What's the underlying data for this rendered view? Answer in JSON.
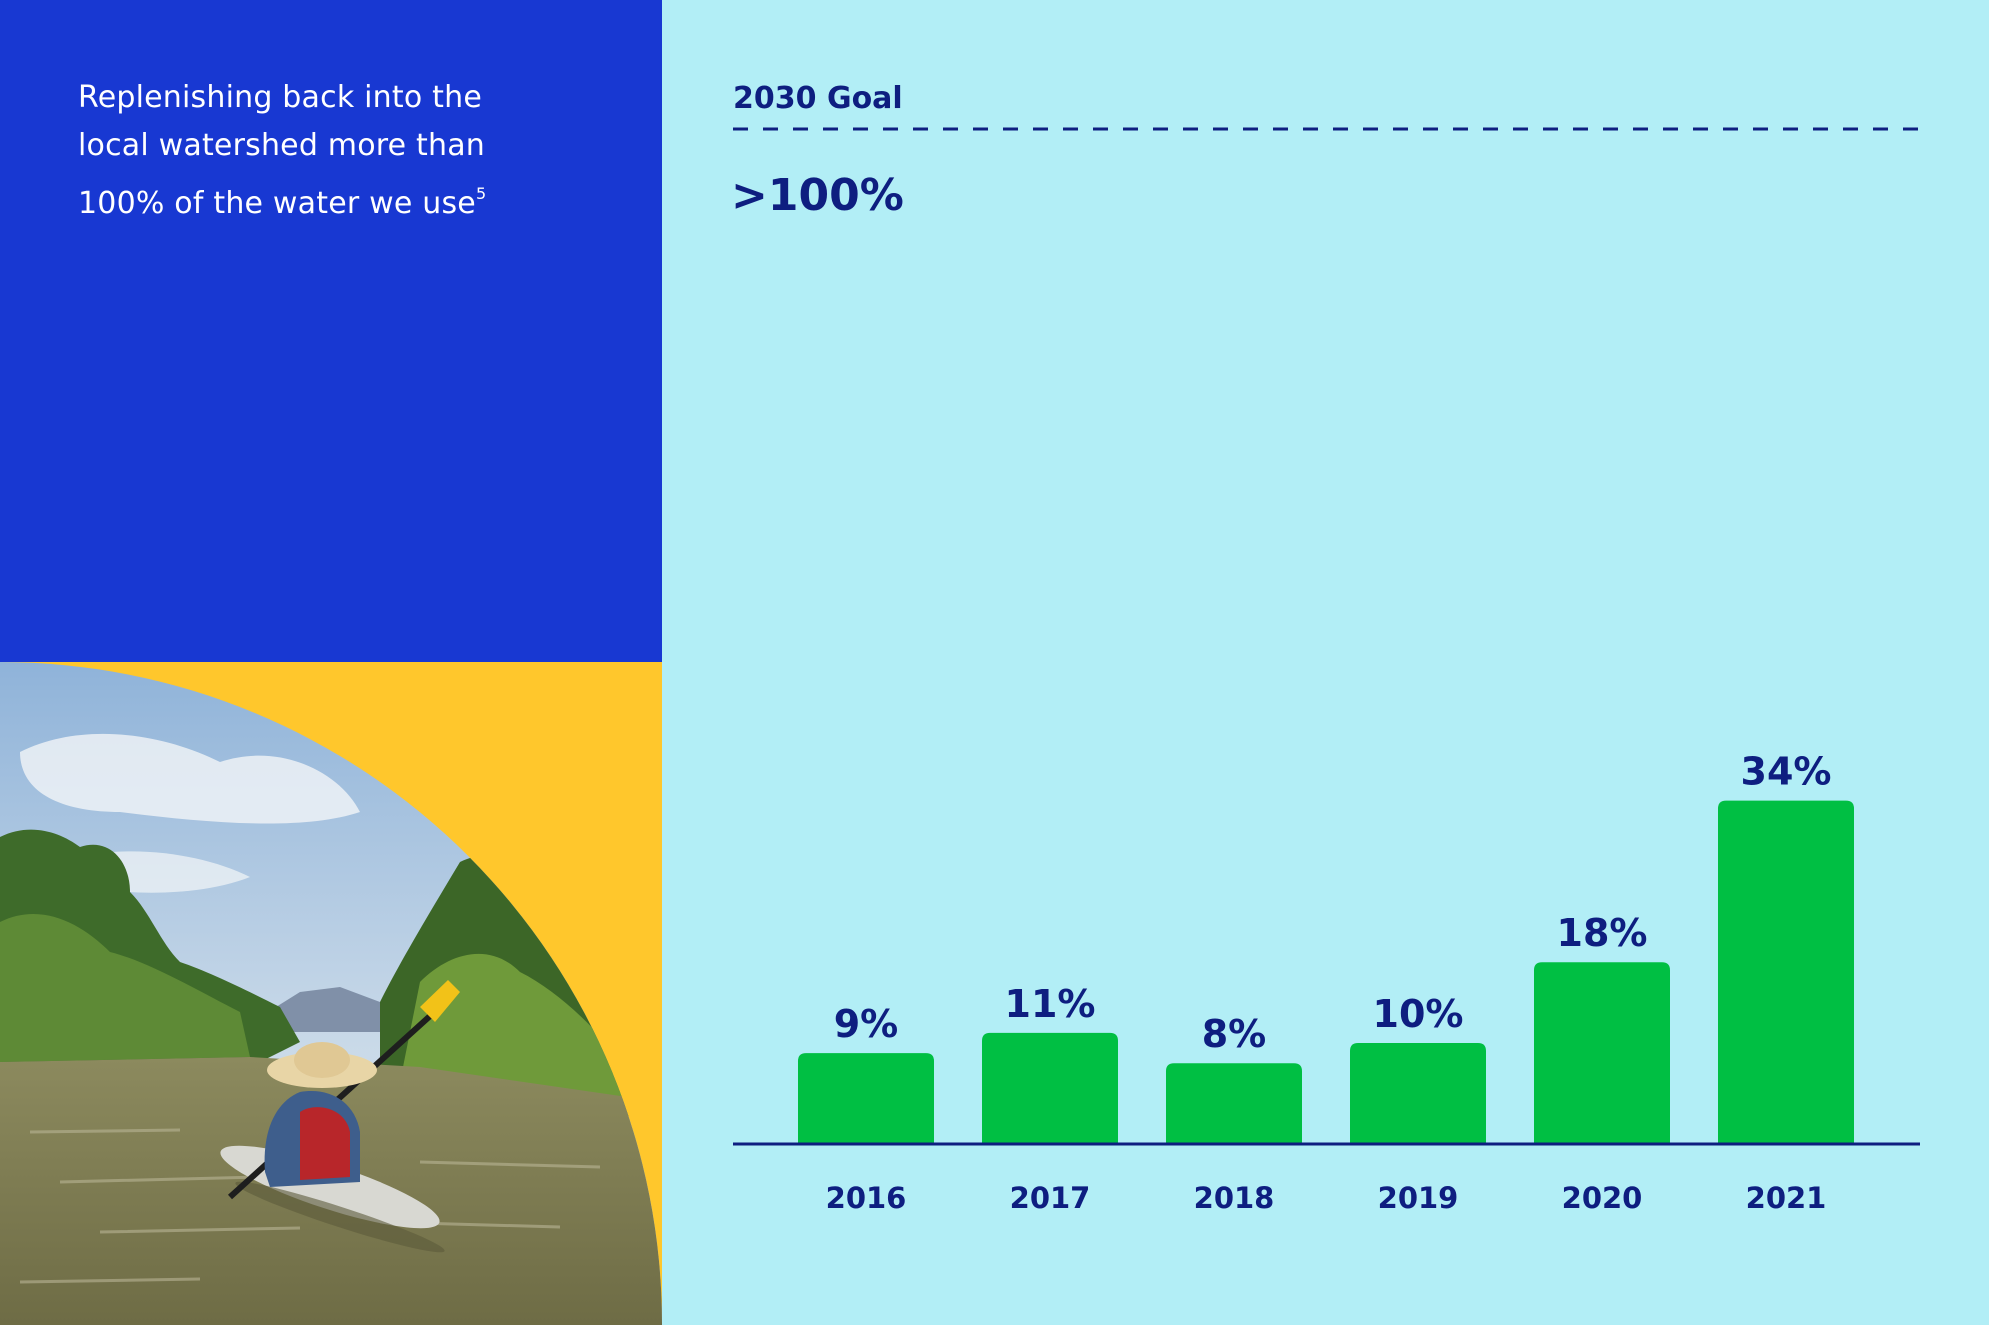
{
  "colors": {
    "blue_panel": "#1838D2",
    "chart_bg": "#B2EEF6",
    "navy": "#0E1E80",
    "bar_green": "#00BF43",
    "accent_yellow": "#FFC72C"
  },
  "intro": {
    "line1": "Replenishing back into the",
    "line2": "local watershed more than",
    "line3": "100% of the water we use",
    "footnote": "5"
  },
  "photo": {
    "icon": "kayaker-on-river-photo"
  },
  "chart_data": {
    "type": "bar",
    "categories": [
      "2016",
      "2017",
      "2018",
      "2019",
      "2020",
      "2021"
    ],
    "values": [
      9,
      11,
      8,
      10,
      18,
      34
    ],
    "value_labels": [
      "9%",
      "11%",
      "8%",
      "10%",
      "18%",
      "34%"
    ],
    "goal": {
      "label": "2030 Goal",
      "value_text": ">100%"
    },
    "title": "",
    "xlabel": "",
    "ylabel": "",
    "grid": false,
    "legend": false
  }
}
